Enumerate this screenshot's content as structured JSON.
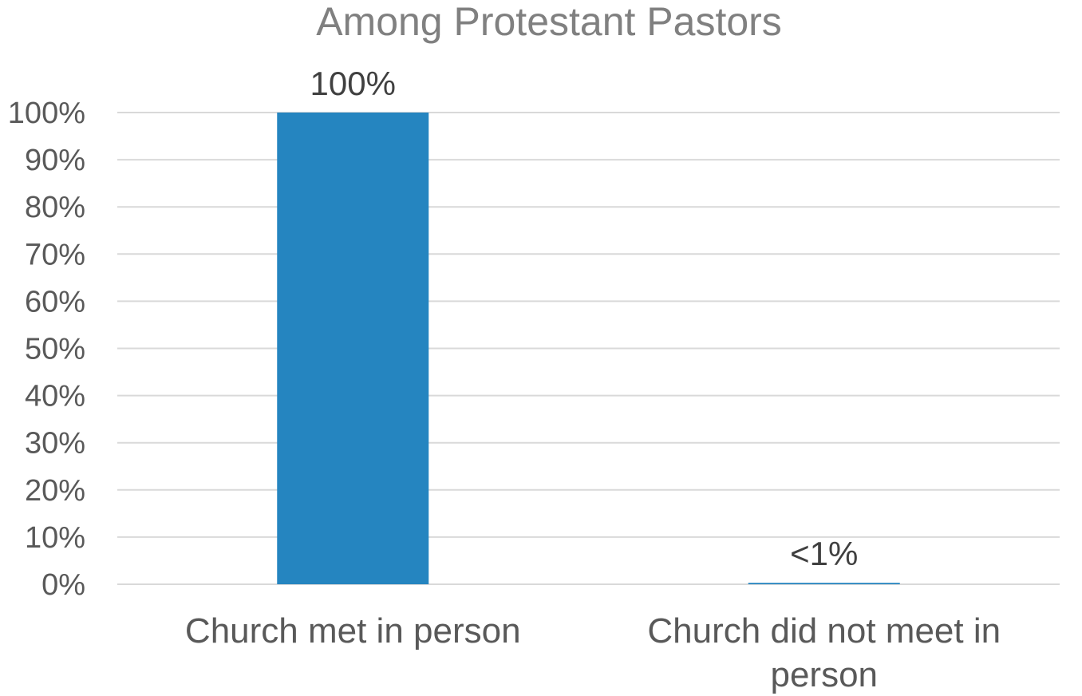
{
  "chart_data": {
    "type": "bar",
    "title": "Among Protestant Pastors",
    "categories": [
      "Church met in person",
      "Church did not meet in person"
    ],
    "category_lines": [
      [
        "Church met in person"
      ],
      [
        "Church did not meet in",
        "person"
      ]
    ],
    "values": [
      100,
      0.3
    ],
    "data_labels": [
      "100%",
      "<1%"
    ],
    "ylim": [
      0,
      100
    ],
    "yticks": [
      "0%",
      "10%",
      "20%",
      "30%",
      "40%",
      "50%",
      "60%",
      "70%",
      "80%",
      "90%",
      "100%"
    ],
    "grid": true,
    "bar_color": "#2585c0"
  }
}
